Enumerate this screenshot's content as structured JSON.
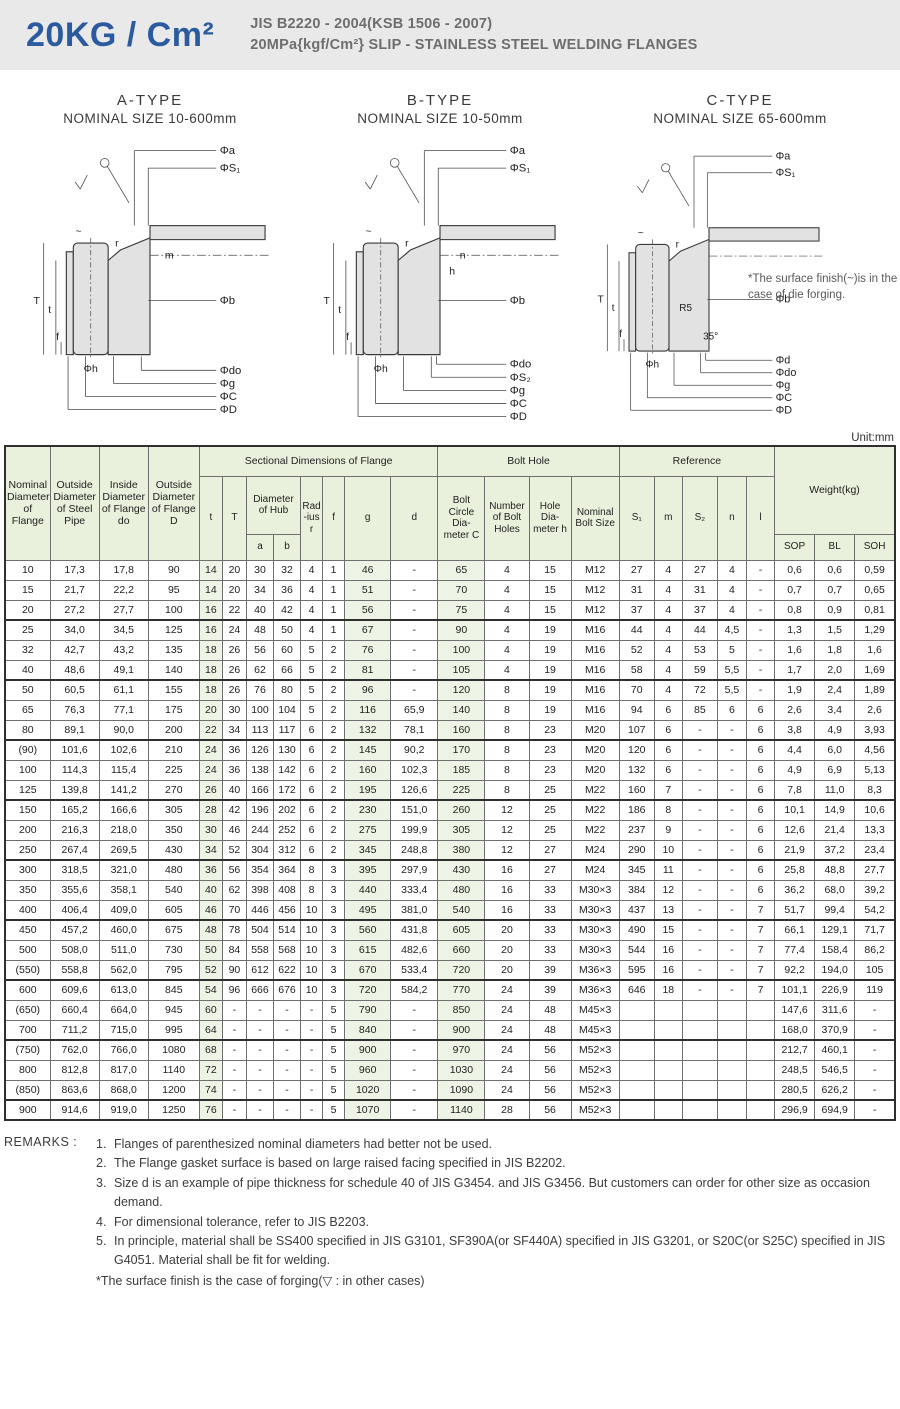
{
  "header": {
    "title": "20KG / Cm²",
    "subtitle_line1": "JIS B2220 - 2004(KSB 1506 - 2007)",
    "subtitle_line2": "20MPa{kgf/Cm²} SLIP - STAINLESS STEEL WELDING FLANGES"
  },
  "diagrams": [
    {
      "name": "A-TYPE",
      "size_range": "NOMINAL SIZE 10-600mm",
      "dims_top": [
        "Φa",
        "ΦS₁"
      ],
      "dim_bore": "Φb",
      "dims_bottom": [
        "Φdo",
        "Φg",
        "ΦC",
        "ΦD"
      ],
      "dims_left": [
        "T",
        "t",
        "f",
        "Φh"
      ],
      "annotations": [
        "r",
        "m"
      ]
    },
    {
      "name": "B-TYPE",
      "size_range": "NOMINAL SIZE 10-50mm",
      "dims_top": [
        "Φa",
        "ΦS₁"
      ],
      "dim_bore": "Φb",
      "dims_bottom": [
        "Φdo",
        "ΦS₂",
        "Φg",
        "ΦC",
        "ΦD"
      ],
      "dims_left": [
        "T",
        "t",
        "f",
        "Φh"
      ],
      "annotations": [
        "r",
        "n",
        "h"
      ]
    },
    {
      "name": "C-TYPE",
      "size_range": "NOMINAL SIZE 65-600mm",
      "dims_top": [
        "Φa",
        "ΦS₁"
      ],
      "dim_bore": "Φb",
      "dims_bottom": [
        "Φd",
        "Φdo",
        "Φg",
        "ΦC",
        "ΦD"
      ],
      "dims_left": [
        "T",
        "t",
        "f",
        "Φh"
      ],
      "annotations": [
        "r",
        "R5",
        "35°"
      ],
      "note": "*The surface finish(~)is in the case of die forging."
    }
  ],
  "table": {
    "unit_label": "Unit:mm",
    "group_headers": {
      "sectional": "Sectional Dimensions of Flange",
      "bolt_hole": "Bolt Hole",
      "reference": "Reference",
      "weight": "Weight(kg)"
    },
    "headers": {
      "nominal": "Nominal Diameter of Flange",
      "pipe_od": "Outside Diameter of Steel Pipe",
      "flange_id": "Inside Diameter of Flange do",
      "flange_od": "Outside Diameter of Flange D",
      "t": "t",
      "T": "T",
      "hub": "Diameter of Hub",
      "a": "a",
      "b": "b",
      "radius": "Rad -ius r",
      "f": "f",
      "g": "g",
      "d": "d",
      "bolt_circle": "Bolt Circle Dia- meter C",
      "num_holes": "Number of Bolt Holes",
      "hole_dia": "Hole Dia- meter h",
      "bolt_size": "Nominal Bolt Size",
      "s1": "S₁",
      "m": "m",
      "s2": "S₂",
      "n": "n",
      "l": "l",
      "sop": "SOP",
      "bl": "BL",
      "soh": "SOH"
    },
    "rows": [
      [
        "10",
        "17,3",
        "17,8",
        "90",
        "14",
        "20",
        "30",
        "32",
        "4",
        "1",
        "46",
        "-",
        "65",
        "4",
        "15",
        "M12",
        "27",
        "4",
        "27",
        "4",
        "-",
        "0,6",
        "0,6",
        "0,59"
      ],
      [
        "15",
        "21,7",
        "22,2",
        "95",
        "14",
        "20",
        "34",
        "36",
        "4",
        "1",
        "51",
        "-",
        "70",
        "4",
        "15",
        "M12",
        "31",
        "4",
        "31",
        "4",
        "-",
        "0,7",
        "0,7",
        "0,65"
      ],
      [
        "20",
        "27,2",
        "27,7",
        "100",
        "16",
        "22",
        "40",
        "42",
        "4",
        "1",
        "56",
        "-",
        "75",
        "4",
        "15",
        "M12",
        "37",
        "4",
        "37",
        "4",
        "-",
        "0,8",
        "0,9",
        "0,81"
      ],
      [
        "25",
        "34,0",
        "34,5",
        "125",
        "16",
        "24",
        "48",
        "50",
        "4",
        "1",
        "67",
        "-",
        "90",
        "4",
        "19",
        "M16",
        "44",
        "4",
        "44",
        "4,5",
        "-",
        "1,3",
        "1,5",
        "1,29"
      ],
      [
        "32",
        "42,7",
        "43,2",
        "135",
        "18",
        "26",
        "56",
        "60",
        "5",
        "2",
        "76",
        "-",
        "100",
        "4",
        "19",
        "M16",
        "52",
        "4",
        "53",
        "5",
        "-",
        "1,6",
        "1,8",
        "1,6"
      ],
      [
        "40",
        "48,6",
        "49,1",
        "140",
        "18",
        "26",
        "62",
        "66",
        "5",
        "2",
        "81",
        "-",
        "105",
        "4",
        "19",
        "M16",
        "58",
        "4",
        "59",
        "5,5",
        "-",
        "1,7",
        "2,0",
        "1,69"
      ],
      [
        "50",
        "60,5",
        "61,1",
        "155",
        "18",
        "26",
        "76",
        "80",
        "5",
        "2",
        "96",
        "-",
        "120",
        "8",
        "19",
        "M16",
        "70",
        "4",
        "72",
        "5,5",
        "-",
        "1,9",
        "2,4",
        "1,89"
      ],
      [
        "65",
        "76,3",
        "77,1",
        "175",
        "20",
        "30",
        "100",
        "104",
        "5",
        "2",
        "116",
        "65,9",
        "140",
        "8",
        "19",
        "M16",
        "94",
        "6",
        "85",
        "6",
        "6",
        "2,6",
        "3,4",
        "2,6"
      ],
      [
        "80",
        "89,1",
        "90,0",
        "200",
        "22",
        "34",
        "113",
        "117",
        "6",
        "2",
        "132",
        "78,1",
        "160",
        "8",
        "23",
        "M20",
        "107",
        "6",
        "-",
        "-",
        "6",
        "3,8",
        "4,9",
        "3,93"
      ],
      [
        "(90)",
        "101,6",
        "102,6",
        "210",
        "24",
        "36",
        "126",
        "130",
        "6",
        "2",
        "145",
        "90,2",
        "170",
        "8",
        "23",
        "M20",
        "120",
        "6",
        "-",
        "-",
        "6",
        "4,4",
        "6,0",
        "4,56"
      ],
      [
        "100",
        "114,3",
        "115,4",
        "225",
        "24",
        "36",
        "138",
        "142",
        "6",
        "2",
        "160",
        "102,3",
        "185",
        "8",
        "23",
        "M20",
        "132",
        "6",
        "-",
        "-",
        "6",
        "4,9",
        "6,9",
        "5,13"
      ],
      [
        "125",
        "139,8",
        "141,2",
        "270",
        "26",
        "40",
        "166",
        "172",
        "6",
        "2",
        "195",
        "126,6",
        "225",
        "8",
        "25",
        "M22",
        "160",
        "7",
        "-",
        "-",
        "6",
        "7,8",
        "11,0",
        "8,3"
      ],
      [
        "150",
        "165,2",
        "166,6",
        "305",
        "28",
        "42",
        "196",
        "202",
        "6",
        "2",
        "230",
        "151,0",
        "260",
        "12",
        "25",
        "M22",
        "186",
        "8",
        "-",
        "-",
        "6",
        "10,1",
        "14,9",
        "10,6"
      ],
      [
        "200",
        "216,3",
        "218,0",
        "350",
        "30",
        "46",
        "244",
        "252",
        "6",
        "2",
        "275",
        "199,9",
        "305",
        "12",
        "25",
        "M22",
        "237",
        "9",
        "-",
        "-",
        "6",
        "12,6",
        "21,4",
        "13,3"
      ],
      [
        "250",
        "267,4",
        "269,5",
        "430",
        "34",
        "52",
        "304",
        "312",
        "6",
        "2",
        "345",
        "248,8",
        "380",
        "12",
        "27",
        "M24",
        "290",
        "10",
        "-",
        "-",
        "6",
        "21,9",
        "37,2",
        "23,4"
      ],
      [
        "300",
        "318,5",
        "321,0",
        "480",
        "36",
        "56",
        "354",
        "364",
        "8",
        "3",
        "395",
        "297,9",
        "430",
        "16",
        "27",
        "M24",
        "345",
        "11",
        "-",
        "-",
        "6",
        "25,8",
        "48,8",
        "27,7"
      ],
      [
        "350",
        "355,6",
        "358,1",
        "540",
        "40",
        "62",
        "398",
        "408",
        "8",
        "3",
        "440",
        "333,4",
        "480",
        "16",
        "33",
        "M30×3",
        "384",
        "12",
        "-",
        "-",
        "6",
        "36,2",
        "68,0",
        "39,2"
      ],
      [
        "400",
        "406,4",
        "409,0",
        "605",
        "46",
        "70",
        "446",
        "456",
        "10",
        "3",
        "495",
        "381,0",
        "540",
        "16",
        "33",
        "M30×3",
        "437",
        "13",
        "-",
        "-",
        "7",
        "51,7",
        "99,4",
        "54,2"
      ],
      [
        "450",
        "457,2",
        "460,0",
        "675",
        "48",
        "78",
        "504",
        "514",
        "10",
        "3",
        "560",
        "431,8",
        "605",
        "20",
        "33",
        "M30×3",
        "490",
        "15",
        "-",
        "-",
        "7",
        "66,1",
        "129,1",
        "71,7"
      ],
      [
        "500",
        "508,0",
        "511,0",
        "730",
        "50",
        "84",
        "558",
        "568",
        "10",
        "3",
        "615",
        "482,6",
        "660",
        "20",
        "33",
        "M30×3",
        "544",
        "16",
        "-",
        "-",
        "7",
        "77,4",
        "158,4",
        "86,2"
      ],
      [
        "(550)",
        "558,8",
        "562,0",
        "795",
        "52",
        "90",
        "612",
        "622",
        "10",
        "3",
        "670",
        "533,4",
        "720",
        "20",
        "39",
        "M36×3",
        "595",
        "16",
        "-",
        "-",
        "7",
        "92,2",
        "194,0",
        "105"
      ],
      [
        "600",
        "609,6",
        "613,0",
        "845",
        "54",
        "96",
        "666",
        "676",
        "10",
        "3",
        "720",
        "584,2",
        "770",
        "24",
        "39",
        "M36×3",
        "646",
        "18",
        "-",
        "-",
        "7",
        "101,1",
        "226,9",
        "119"
      ],
      [
        "(650)",
        "660,4",
        "664,0",
        "945",
        "60",
        "-",
        "-",
        "-",
        "-",
        "5",
        "790",
        "-",
        "850",
        "24",
        "48",
        "M45×3",
        "",
        "",
        "",
        "",
        "",
        "147,6",
        "311,6",
        "-"
      ],
      [
        "700",
        "711,2",
        "715,0",
        "995",
        "64",
        "-",
        "-",
        "-",
        "-",
        "5",
        "840",
        "-",
        "900",
        "24",
        "48",
        "M45×3",
        "",
        "",
        "",
        "",
        "",
        "168,0",
        "370,9",
        "-"
      ],
      [
        "(750)",
        "762,0",
        "766,0",
        "1080",
        "68",
        "-",
        "-",
        "-",
        "-",
        "5",
        "900",
        "-",
        "970",
        "24",
        "56",
        "M52×3",
        "",
        "",
        "",
        "",
        "",
        "212,7",
        "460,1",
        "-"
      ],
      [
        "800",
        "812,8",
        "817,0",
        "1140",
        "72",
        "-",
        "-",
        "-",
        "-",
        "5",
        "960",
        "-",
        "1030",
        "24",
        "56",
        "M52×3",
        "",
        "",
        "",
        "",
        "",
        "248,5",
        "546,5",
        "-"
      ],
      [
        "(850)",
        "863,6",
        "868,0",
        "1200",
        "74",
        "-",
        "-",
        "-",
        "-",
        "5",
        "1020",
        "-",
        "1090",
        "24",
        "56",
        "M52×3",
        "",
        "",
        "",
        "",
        "",
        "280,5",
        "626,2",
        "-"
      ],
      [
        "900",
        "914,6",
        "919,0",
        "1250",
        "76",
        "-",
        "-",
        "-",
        "-",
        "5",
        "1070",
        "-",
        "1140",
        "28",
        "56",
        "M52×3",
        "",
        "",
        "",
        "",
        "",
        "296,9",
        "694,9",
        "-"
      ]
    ]
  },
  "remarks": {
    "label": "REMARKS :",
    "items": [
      {
        "no": "1.",
        "text": "Flanges of parenthesized nominal diameters had better not be used."
      },
      {
        "no": "2.",
        "text": "The Flange gasket surface is based on large raised facing specified in JIS B2202."
      },
      {
        "no": "3.",
        "text": "Size d is an example of pipe thickness for schedule 40 of JIS G3454. and JIS G3456. But customers can order for other size as occasion demand."
      },
      {
        "no": "4.",
        "text": "For dimensional tolerance, refer to JIS B2203."
      },
      {
        "no": "5.",
        "text": "In principle, material shall be SS400 specified in JIS G3101, SF390A(or SF440A) specified in JIS G3201, or S20C(or S25C) specified in JIS G4051. Material shall be fit for welding."
      }
    ],
    "footnote": "*The surface finish is the case of forging(▽ : in other cases)"
  }
}
